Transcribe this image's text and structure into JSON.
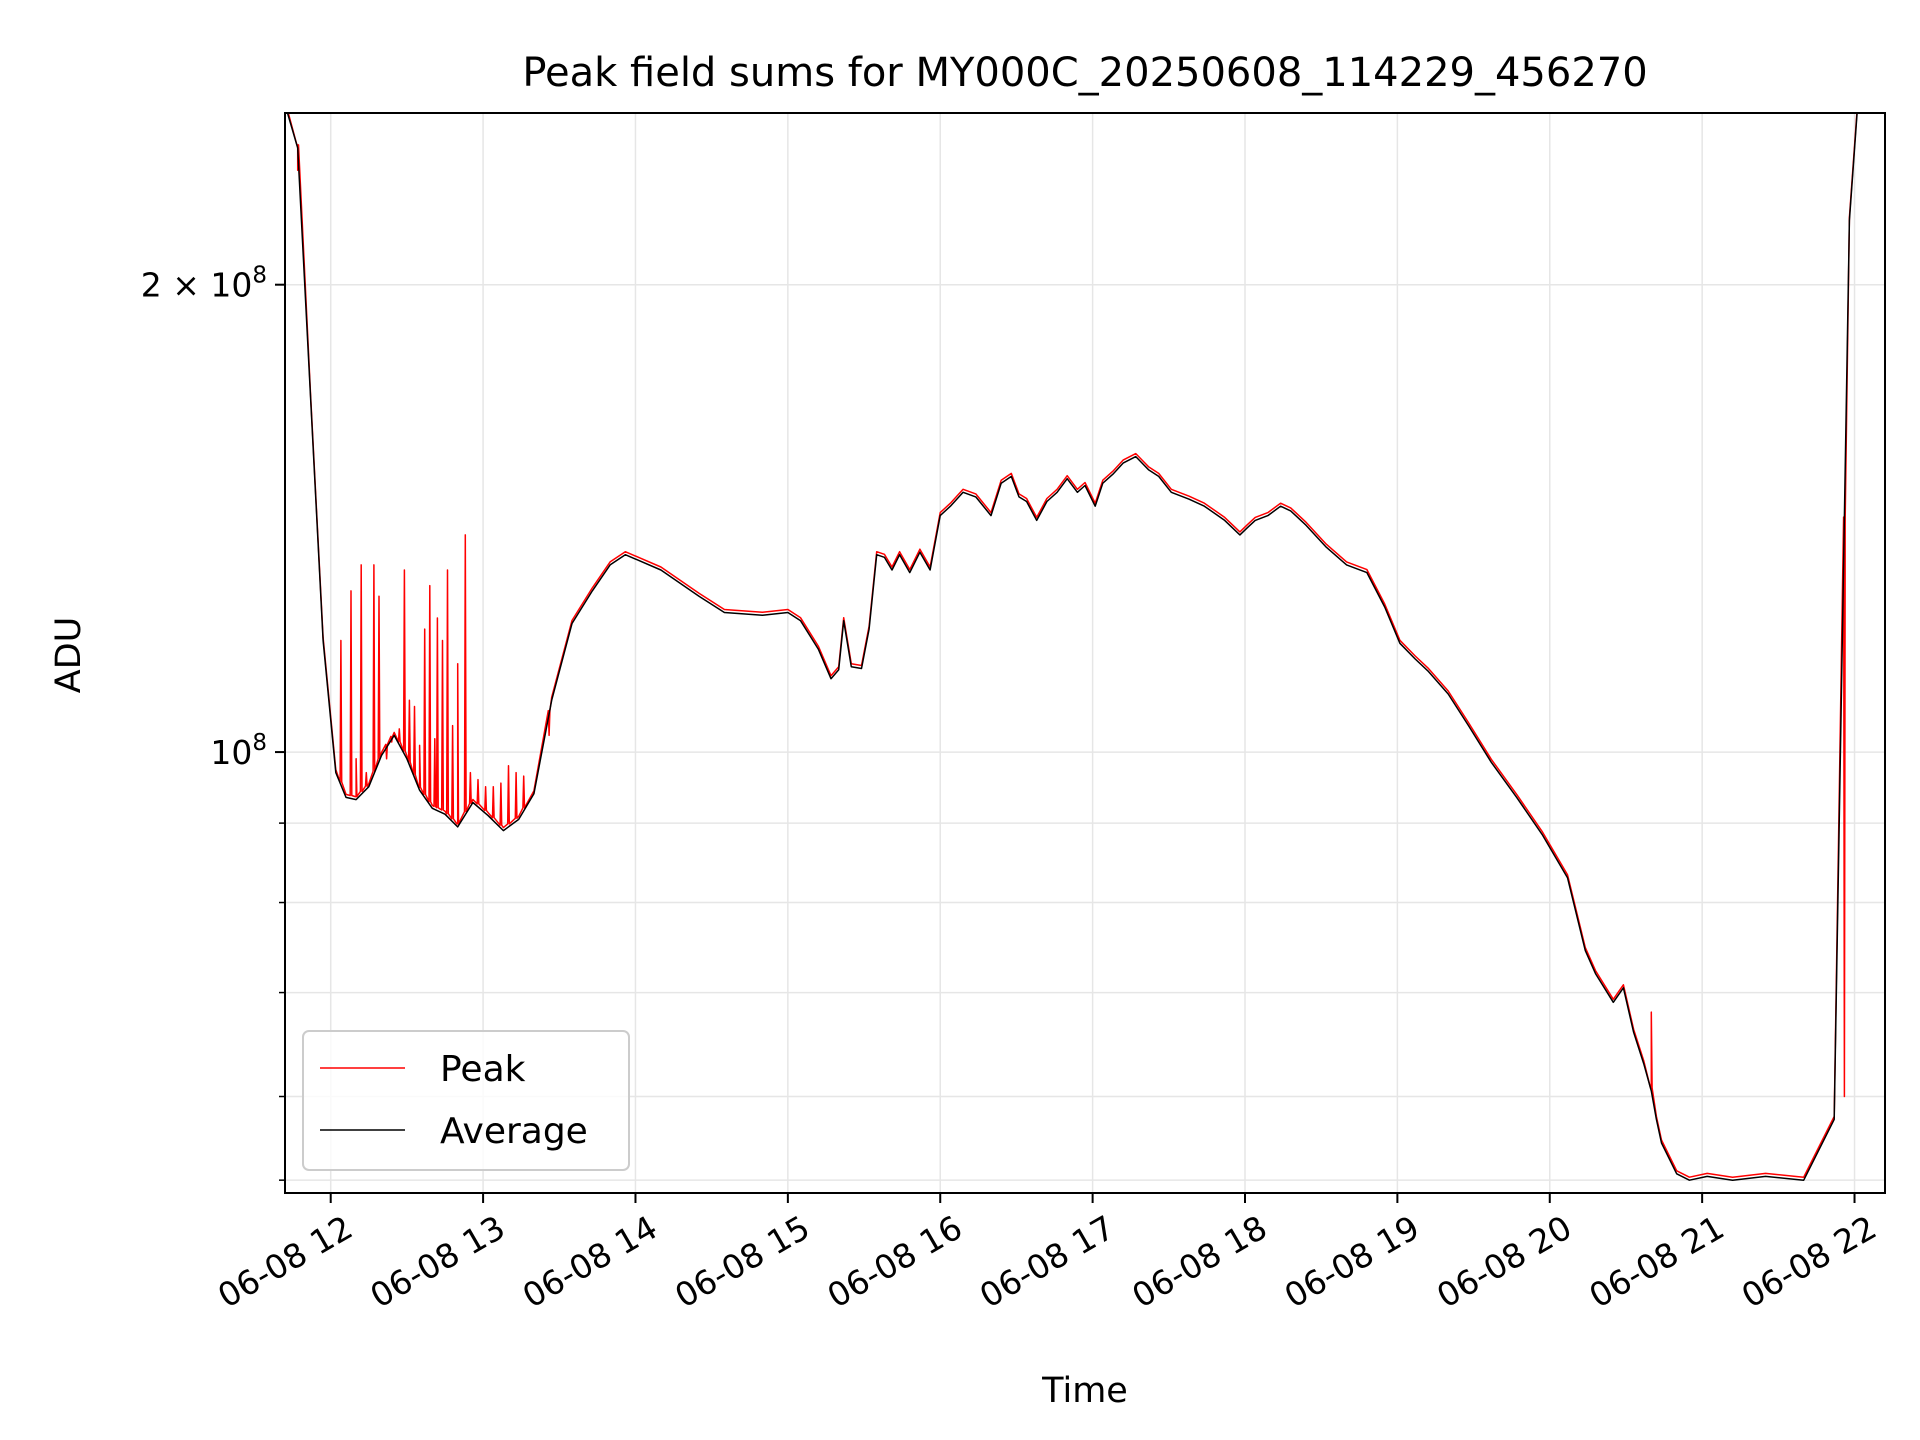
{
  "chart_data": {
    "type": "line",
    "title": "Peak field sums for MY000C_20250608_114229_456270",
    "xlabel": "Time",
    "ylabel": "ADU",
    "yscale": "log",
    "xlim": [
      "2025-06-08 11:42",
      "2025-06-08 22:12"
    ],
    "ylim": [
      52000000,
      258000000
    ],
    "grid": true,
    "legend_position": "lower-left",
    "x_ticks": [
      {
        "x": "2025-06-08 12:00",
        "label": "06-08 12"
      },
      {
        "x": "2025-06-08 13:00",
        "label": "06-08 13"
      },
      {
        "x": "2025-06-08 14:00",
        "label": "06-08 14"
      },
      {
        "x": "2025-06-08 15:00",
        "label": "06-08 15"
      },
      {
        "x": "2025-06-08 16:00",
        "label": "06-08 16"
      },
      {
        "x": "2025-06-08 17:00",
        "label": "06-08 17"
      },
      {
        "x": "2025-06-08 18:00",
        "label": "06-08 18"
      },
      {
        "x": "2025-06-08 19:00",
        "label": "06-08 19"
      },
      {
        "x": "2025-06-08 20:00",
        "label": "06-08 20"
      },
      {
        "x": "2025-06-08 21:00",
        "label": "06-08 21"
      },
      {
        "x": "2025-06-08 22:00",
        "label": "06-08 22"
      }
    ],
    "y_ticks_major": [
      {
        "y": 100000000,
        "base": "10",
        "exp": "8",
        "coef": ""
      },
      {
        "y": 200000000,
        "base": "10",
        "exp": "8",
        "coef": "2 × "
      }
    ],
    "y_ticks_minor": [
      53000000,
      60000000,
      70000000,
      80000000,
      90000000
    ],
    "series": [
      {
        "name": "Average",
        "color": "#000000",
        "x": [
          "2025-06-08 11:43",
          "2025-06-08 11:47",
          "2025-06-08 11:52",
          "2025-06-08 11:57",
          "2025-06-08 12:02",
          "2025-06-08 12:06",
          "2025-06-08 12:10",
          "2025-06-08 12:15",
          "2025-06-08 12:20",
          "2025-06-08 12:25",
          "2025-06-08 12:30",
          "2025-06-08 12:35",
          "2025-06-08 12:40",
          "2025-06-08 12:45",
          "2025-06-08 12:50",
          "2025-06-08 12:56",
          "2025-06-08 13:02",
          "2025-06-08 13:08",
          "2025-06-08 13:14",
          "2025-06-08 13:20",
          "2025-06-08 13:27",
          "2025-06-08 13:35",
          "2025-06-08 13:43",
          "2025-06-08 13:50",
          "2025-06-08 13:56",
          "2025-06-08 14:10",
          "2025-06-08 14:25",
          "2025-06-08 14:35",
          "2025-06-08 14:50",
          "2025-06-08 15:00",
          "2025-06-08 15:05",
          "2025-06-08 15:12",
          "2025-06-08 15:17",
          "2025-06-08 15:20",
          "2025-06-08 15:22",
          "2025-06-08 15:25",
          "2025-06-08 15:29",
          "2025-06-08 15:32",
          "2025-06-08 15:35",
          "2025-06-08 15:38",
          "2025-06-08 15:41",
          "2025-06-08 15:44",
          "2025-06-08 15:48",
          "2025-06-08 15:52",
          "2025-06-08 15:56",
          "2025-06-08 16:00",
          "2025-06-08 16:04",
          "2025-06-08 16:09",
          "2025-06-08 16:14",
          "2025-06-08 16:20",
          "2025-06-08 16:24",
          "2025-06-08 16:28",
          "2025-06-08 16:31",
          "2025-06-08 16:34",
          "2025-06-08 16:38",
          "2025-06-08 16:42",
          "2025-06-08 16:46",
          "2025-06-08 16:50",
          "2025-06-08 16:54",
          "2025-06-08 16:57",
          "2025-06-08 17:01",
          "2025-06-08 17:04",
          "2025-06-08 17:08",
          "2025-06-08 17:12",
          "2025-06-08 17:17",
          "2025-06-08 17:22",
          "2025-06-08 17:26",
          "2025-06-08 17:31",
          "2025-06-08 17:38",
          "2025-06-08 17:44",
          "2025-06-08 17:52",
          "2025-06-08 17:58",
          "2025-06-08 18:01",
          "2025-06-08 18:04",
          "2025-06-08 18:09",
          "2025-06-08 18:14",
          "2025-06-08 18:18",
          "2025-06-08 18:24",
          "2025-06-08 18:32",
          "2025-06-08 18:40",
          "2025-06-08 18:48",
          "2025-06-08 18:55",
          "2025-06-08 19:01",
          "2025-06-08 19:07",
          "2025-06-08 19:12",
          "2025-06-08 19:20",
          "2025-06-08 19:28",
          "2025-06-08 19:37",
          "2025-06-08 19:47",
          "2025-06-08 19:57",
          "2025-06-08 20:07",
          "2025-06-08 20:14",
          "2025-06-08 20:18",
          "2025-06-08 20:25",
          "2025-06-08 20:29",
          "2025-06-08 20:33",
          "2025-06-08 20:37",
          "2025-06-08 20:40",
          "2025-06-08 20:42",
          "2025-06-08 20:44",
          "2025-06-08 20:50",
          "2025-06-08 20:55",
          "2025-06-08 21:02",
          "2025-06-08 21:12",
          "2025-06-08 21:25",
          "2025-06-08 21:40",
          "2025-06-08 21:52",
          "2025-06-08 21:58",
          "2025-06-08 22:01",
          "2025-06-08 22:03",
          "2025-06-08 22:06",
          "2025-06-08 22:09",
          "2025-06-08 22:12"
        ],
        "y": [
          258000000,
          245000000,
          170000000,
          118000000,
          97000000,
          93500000,
          93200000,
          95000000,
          99500000,
          102500000,
          99000000,
          94500000,
          92000000,
          91200000,
          89500000,
          92800000,
          91000000,
          89000000,
          90500000,
          94000000,
          108000000,
          121000000,
          127000000,
          132000000,
          134000000,
          131000000,
          126000000,
          123000000,
          122500000,
          123000000,
          121500000,
          116500000,
          111500000,
          113000000,
          121500000,
          113500000,
          113200000,
          120000000,
          134000000,
          133500000,
          131000000,
          134000000,
          130500000,
          134500000,
          131000000,
          142000000,
          144000000,
          147000000,
          146000000,
          142000000,
          149000000,
          150500000,
          146000000,
          145000000,
          141000000,
          145000000,
          147000000,
          150000000,
          147000000,
          148500000,
          144000000,
          149000000,
          151000000,
          153500000,
          155000000,
          152000000,
          150500000,
          147000000,
          145500000,
          144000000,
          141000000,
          138000000,
          139500000,
          141000000,
          142000000,
          144000000,
          143000000,
          140000000,
          135500000,
          132000000,
          130500000,
          124000000,
          117500000,
          114800000,
          112800000,
          109000000,
          104000000,
          98500000,
          93500000,
          88500000,
          83000000,
          74500000,
          72000000,
          69000000,
          70500000,
          66000000,
          63000000,
          60500000,
          58000000,
          56000000,
          53500000,
          53000000,
          53300000,
          53000000,
          53300000,
          53000000,
          58000000,
          220000000,
          258000000,
          258000000,
          258000000,
          258000000,
          258000000
        ]
      },
      {
        "name": "Peak",
        "color": "#ff0000",
        "spikes": [
          {
            "x": "2025-06-08 11:47",
            "y": 237000000
          },
          {
            "x": "2025-06-08 12:04",
            "y": 118000000
          },
          {
            "x": "2025-06-08 12:08",
            "y": 127000000
          },
          {
            "x": "2025-06-08 12:10",
            "y": 99000000
          },
          {
            "x": "2025-06-08 12:12",
            "y": 132000000
          },
          {
            "x": "2025-06-08 12:14",
            "y": 97000000
          },
          {
            "x": "2025-06-08 12:17",
            "y": 132000000
          },
          {
            "x": "2025-06-08 12:19",
            "y": 126000000
          },
          {
            "x": "2025-06-08 12:22",
            "y": 99000000
          },
          {
            "x": "2025-06-08 12:24",
            "y": 101500000
          },
          {
            "x": "2025-06-08 12:27",
            "y": 103500000
          },
          {
            "x": "2025-06-08 12:29",
            "y": 131000000
          },
          {
            "x": "2025-06-08 12:31",
            "y": 108000000
          },
          {
            "x": "2025-06-08 12:33",
            "y": 107000000
          },
          {
            "x": "2025-06-08 12:35",
            "y": 101000000
          },
          {
            "x": "2025-06-08 12:37",
            "y": 120000000
          },
          {
            "x": "2025-06-08 12:39",
            "y": 128000000
          },
          {
            "x": "2025-06-08 12:41",
            "y": 102000000
          },
          {
            "x": "2025-06-08 12:42",
            "y": 122000000
          },
          {
            "x": "2025-06-08 12:44",
            "y": 118000000
          },
          {
            "x": "2025-06-08 12:46",
            "y": 131000000
          },
          {
            "x": "2025-06-08 12:48",
            "y": 104000000
          },
          {
            "x": "2025-06-08 12:50",
            "y": 114000000
          },
          {
            "x": "2025-06-08 12:53",
            "y": 138000000
          },
          {
            "x": "2025-06-08 12:55",
            "y": 97000000
          },
          {
            "x": "2025-06-08 12:58",
            "y": 96000000
          },
          {
            "x": "2025-06-08 13:01",
            "y": 95000000
          },
          {
            "x": "2025-06-08 13:04",
            "y": 95000000
          },
          {
            "x": "2025-06-08 13:07",
            "y": 95500000
          },
          {
            "x": "2025-06-08 13:10",
            "y": 98000000
          },
          {
            "x": "2025-06-08 13:13",
            "y": 97000000
          },
          {
            "x": "2025-06-08 13:16",
            "y": 96500000
          },
          {
            "x": "2025-06-08 13:26",
            "y": 102500000
          },
          {
            "x": "2025-06-08 20:40",
            "y": 68000000
          },
          {
            "x": "2025-06-08 21:56",
            "y": 60000000
          }
        ]
      }
    ]
  }
}
